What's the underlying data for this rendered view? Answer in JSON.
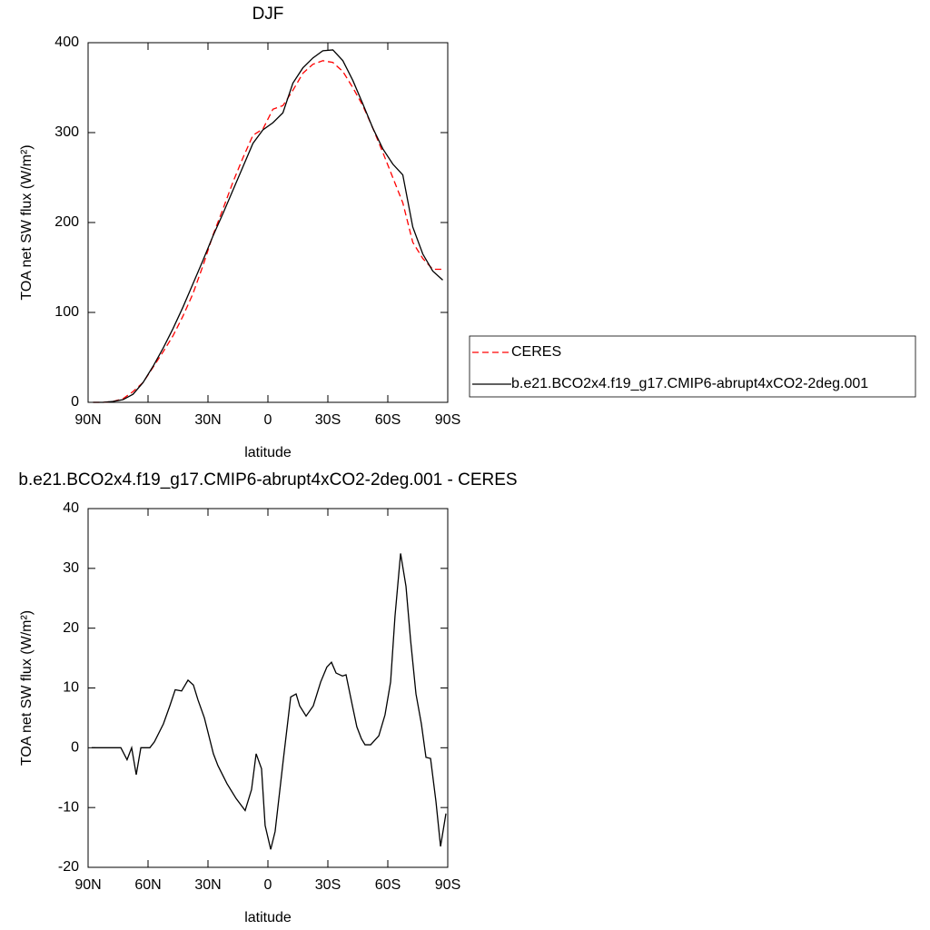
{
  "chart_data": [
    {
      "type": "line",
      "title": "DJF",
      "x_label": "latitude",
      "y_label": "TOA net SW flux (W/m²)",
      "xlim": [
        90,
        -90
      ],
      "xticks": [
        {
          "value": 90,
          "label": "90N"
        },
        {
          "value": 60,
          "label": "60N"
        },
        {
          "value": 30,
          "label": "30N"
        },
        0,
        {
          "value": -30,
          "label": "30S"
        },
        {
          "value": -60,
          "label": "60S"
        },
        {
          "value": -90,
          "label": "90S"
        }
      ],
      "ylim": [
        0,
        400
      ],
      "yticks": [
        0,
        100,
        200,
        300,
        400
      ],
      "legend": "outside-right",
      "x": [
        87.5,
        82.5,
        77.5,
        72.5,
        67.5,
        62.5,
        57.5,
        52.5,
        47.5,
        42.5,
        37.5,
        32.5,
        27.5,
        22.5,
        17.5,
        12.5,
        7.5,
        2.5,
        -2.5,
        -7.5,
        -12.5,
        -17.5,
        -22.5,
        -27.5,
        -32.5,
        -37.5,
        -42.5,
        -47.5,
        -52.5,
        -57.5,
        -62.5,
        -67.5,
        -72.5,
        -77.5,
        -82.5,
        -87.5
      ],
      "series": [
        {
          "name": "CERES",
          "color": "#ff0000",
          "line_style": "dashed",
          "values": [
            0,
            0,
            1,
            4,
            12,
            22,
            39,
            56,
            74,
            96,
            121,
            152,
            186,
            215,
            245,
            272,
            297,
            304,
            326,
            330,
            347,
            366,
            376,
            380,
            378,
            368,
            350,
            330,
            305,
            278,
            250,
            222,
            178,
            160,
            148,
            148
          ]
        },
        {
          "name": "b.e21.BCO2x4.f19_g17.CMIP6-abrupt4xCO2-2deg.001",
          "color": "#000000",
          "line_style": "solid",
          "values": [
            0,
            0,
            1,
            3,
            9,
            22,
            40,
            60,
            82,
            106,
            132,
            158,
            185,
            210,
            236,
            262,
            288,
            303,
            311,
            322,
            355,
            372,
            383,
            391,
            392,
            380,
            358,
            332,
            305,
            282,
            265,
            253,
            195,
            165,
            146,
            136
          ]
        }
      ]
    },
    {
      "type": "line",
      "title": "b.e21.BCO2x4.f19_g17.CMIP6-abrupt4xCO2-2deg.001 - CERES",
      "x_label": "latitude",
      "y_label": "TOA net SW flux (W/m²)",
      "xlim": [
        90,
        -90
      ],
      "xticks": [
        {
          "value": 90,
          "label": "90N"
        },
        {
          "value": 60,
          "label": "60N"
        },
        {
          "value": 30,
          "label": "30N"
        },
        0,
        {
          "value": -30,
          "label": "30S"
        },
        {
          "value": -60,
          "label": "60S"
        },
        {
          "value": -90,
          "label": "90S"
        }
      ],
      "ylim": [
        -20,
        40
      ],
      "yticks": [
        -20,
        -10,
        0,
        10,
        20,
        30,
        40
      ],
      "x": [
        88.2,
        73.6,
        70.5,
        68.2,
        65.9,
        63.6,
        59.1,
        56.8,
        52.3,
        49.1,
        46.4,
        43.2,
        40,
        37.3,
        35,
        31.8,
        27.3,
        25,
        20.5,
        15.9,
        11.4,
        8.2,
        5.9,
        3.2,
        1.4,
        -1.4,
        -3.6,
        -7.7,
        -11.4,
        -14.1,
        -15.9,
        -19.1,
        -22.7,
        -26.4,
        -29.5,
        -31.8,
        -34.1,
        -37.3,
        -39.1,
        -42.3,
        -44.5,
        -46.8,
        -48.6,
        -51.4,
        -55.5,
        -58.6,
        -61.4,
        -63.6,
        -66.4,
        -69.1,
        -71.4,
        -74.1,
        -76.8,
        -79.1,
        -81.4,
        -84.1,
        -86.4,
        -89.1
      ],
      "series": [
        {
          "color": "#000000",
          "line_style": "solid",
          "values": [
            0,
            0,
            -2,
            0,
            -4.5,
            0,
            0,
            1,
            4,
            7,
            9.7,
            9.5,
            11.3,
            10.5,
            8,
            5,
            -1,
            -3,
            -6,
            -8.5,
            -10.5,
            -7,
            -1,
            -3.5,
            -13,
            -17,
            -14,
            -2,
            8.5,
            9,
            7,
            5.3,
            7,
            11,
            13.5,
            14.3,
            12.5,
            12,
            12.2,
            7,
            3.5,
            1.5,
            0.5,
            0.5,
            2,
            5.5,
            11,
            22,
            32.5,
            27,
            18,
            9,
            4,
            -1.6,
            -1.8,
            -9,
            -16.5,
            -11
          ]
        }
      ]
    }
  ]
}
